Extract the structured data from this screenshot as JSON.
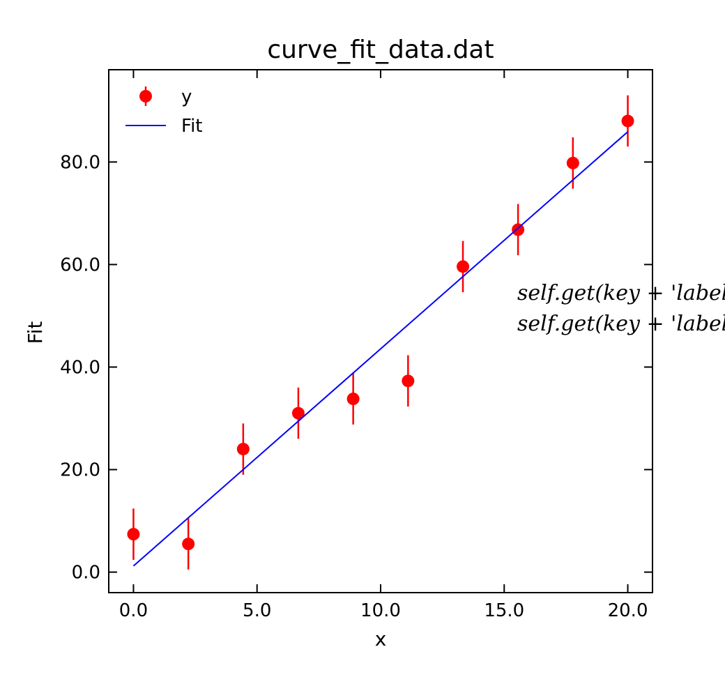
{
  "chart_data": {
    "type": "scatter",
    "title": "curve_fit_data.dat",
    "xlabel": "x",
    "ylabel": "Fit",
    "xlim": [
      -1.0,
      21.0
    ],
    "ylim": [
      -4.0,
      98.0
    ],
    "xticks": [
      0,
      5,
      10,
      15,
      20
    ],
    "yticks": [
      0,
      20,
      40,
      60,
      80
    ],
    "xtick_labels": [
      "0.0",
      "5.0",
      "10.0",
      "15.0",
      "20.0"
    ],
    "ytick_labels": [
      "0.0",
      "20.0",
      "40.0",
      "60.0",
      "80.0"
    ],
    "grid": false,
    "legend_position": "top-left",
    "series": [
      {
        "name": "y",
        "kind": "errorbar",
        "color": "#ff0000",
        "x": [
          0.0,
          2.22,
          4.44,
          6.67,
          8.89,
          11.11,
          13.33,
          15.56,
          17.78,
          20.0
        ],
        "y": [
          7.4,
          5.5,
          24.0,
          31.0,
          33.8,
          37.3,
          59.6,
          66.8,
          79.8,
          88.0
        ],
        "yerr": [
          5.0,
          5.0,
          5.0,
          5.0,
          5.0,
          5.0,
          5.0,
          5.0,
          5.0,
          5.0
        ]
      },
      {
        "name": "Fit",
        "kind": "line",
        "color": "#0000ff",
        "x": [
          0.0,
          20.0
        ],
        "y": [
          1.2,
          85.9
        ]
      }
    ],
    "annotations": [
      "self.get(key + 'label",
      "self.get(key + 'label"
    ]
  }
}
